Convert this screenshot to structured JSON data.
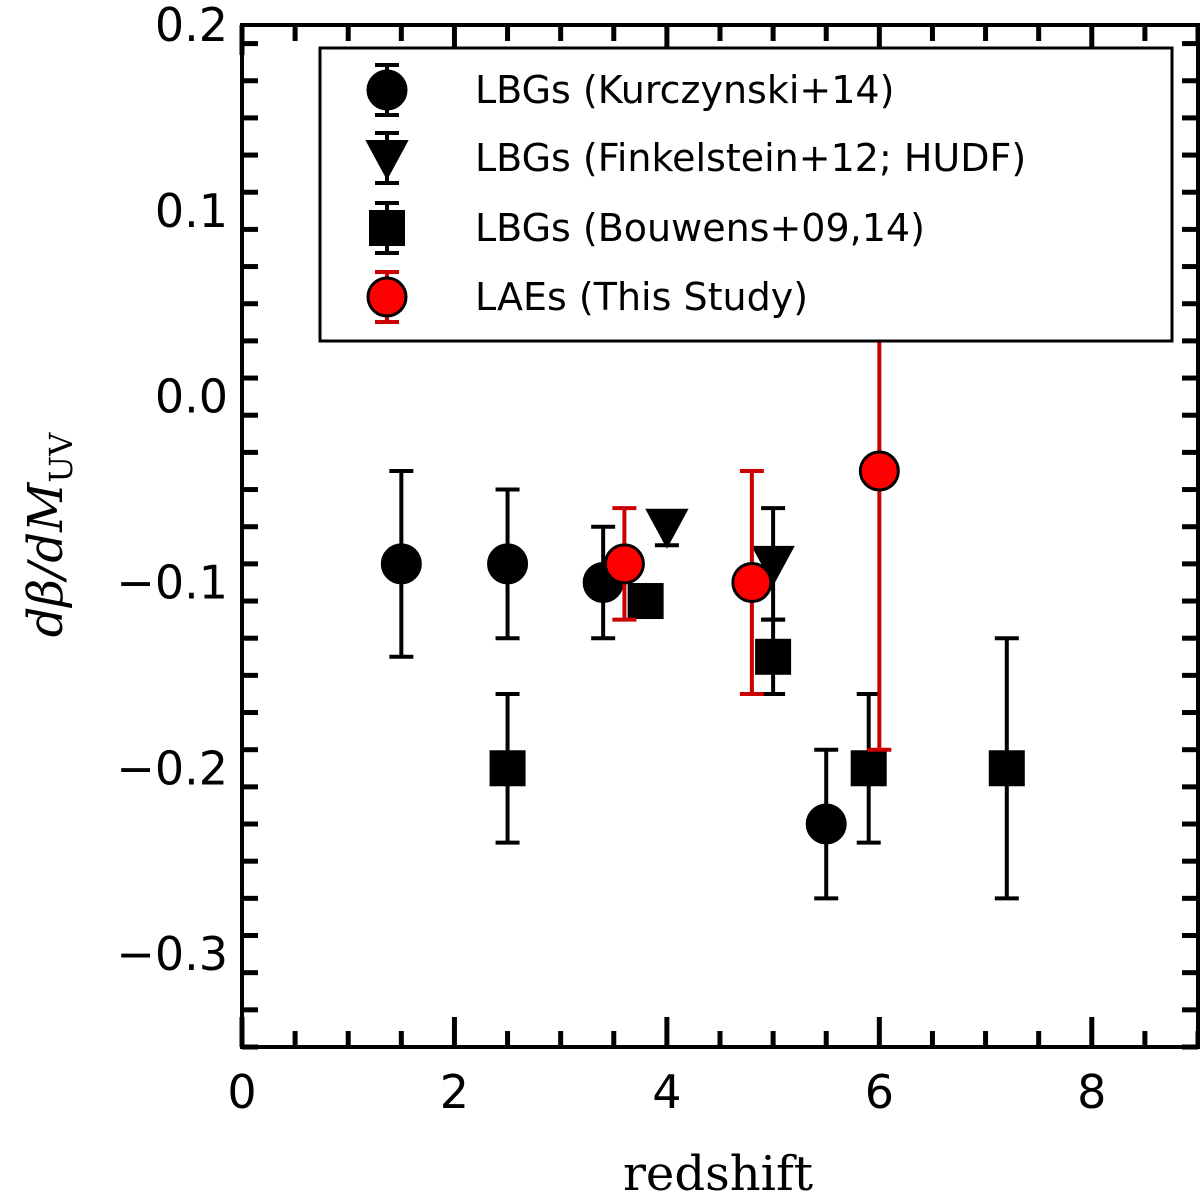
{
  "chart_data": {
    "type": "scatter",
    "xlabel": "redshift",
    "ylabel": "dβ/dM",
    "ylabel_subscript": "UV",
    "xlim": [
      0,
      9
    ],
    "ylim": [
      -0.35,
      0.2
    ],
    "x_ticks": [
      {
        "value": 0,
        "label": "0"
      },
      {
        "value": 2,
        "label": "2"
      },
      {
        "value": 4,
        "label": "4"
      },
      {
        "value": 6,
        "label": "6"
      },
      {
        "value": 8,
        "label": "8"
      }
    ],
    "y_ticks": [
      {
        "value": 0.2,
        "label": "0.2"
      },
      {
        "value": 0.1,
        "label": "0.1"
      },
      {
        "value": 0.0,
        "label": "0.0"
      },
      {
        "value": -0.1,
        "label": "−0.1"
      },
      {
        "value": -0.2,
        "label": "−0.2"
      },
      {
        "value": -0.3,
        "label": "−0.3"
      }
    ],
    "legend_position": "top-right",
    "series": [
      {
        "name": "LBGs (Kurczynski+14)",
        "marker": "circle",
        "color": "#000000",
        "points": [
          {
            "x": 1.5,
            "y": -0.09,
            "err_low": 0.05,
            "err_high": 0.05
          },
          {
            "x": 2.5,
            "y": -0.09,
            "err_low": 0.04,
            "err_high": 0.04
          },
          {
            "x": 3.4,
            "y": -0.1,
            "err_low": 0.03,
            "err_high": 0.03
          },
          {
            "x": 5.5,
            "y": -0.23,
            "err_low": 0.04,
            "err_high": 0.04
          }
        ]
      },
      {
        "name": "LBGs (Finkelstein+12; HUDF)",
        "marker": "triangle-down",
        "color": "#000000",
        "points": [
          {
            "x": 4.0,
            "y": -0.07,
            "err_low": 0.01,
            "err_high": 0.0
          },
          {
            "x": 5.0,
            "y": -0.09,
            "err_low": 0.03,
            "err_high": 0.03
          }
        ]
      },
      {
        "name": "LBGs (Bouwens+09,14)",
        "marker": "square",
        "color": "#000000",
        "points": [
          {
            "x": 2.5,
            "y": -0.2,
            "err_low": 0.04,
            "err_high": 0.04
          },
          {
            "x": 3.8,
            "y": -0.11,
            "err_low": 0.0,
            "err_high": 0.0
          },
          {
            "x": 5.0,
            "y": -0.14,
            "err_low": 0.02,
            "err_high": 0.02
          },
          {
            "x": 5.9,
            "y": -0.2,
            "err_low": 0.04,
            "err_high": 0.04
          },
          {
            "x": 7.2,
            "y": -0.2,
            "err_low": 0.07,
            "err_high": 0.07
          }
        ]
      },
      {
        "name": "LAEs (This Study)",
        "marker": "circle",
        "color": "#ff0000",
        "errcolor": "#cc0000",
        "points": [
          {
            "x": 3.6,
            "y": -0.09,
            "err_low": 0.03,
            "err_high": 0.03
          },
          {
            "x": 4.8,
            "y": -0.1,
            "err_low": 0.06,
            "err_high": 0.06
          },
          {
            "x": 6.0,
            "y": -0.04,
            "err_low": 0.15,
            "err_high": 0.15
          }
        ]
      }
    ]
  }
}
